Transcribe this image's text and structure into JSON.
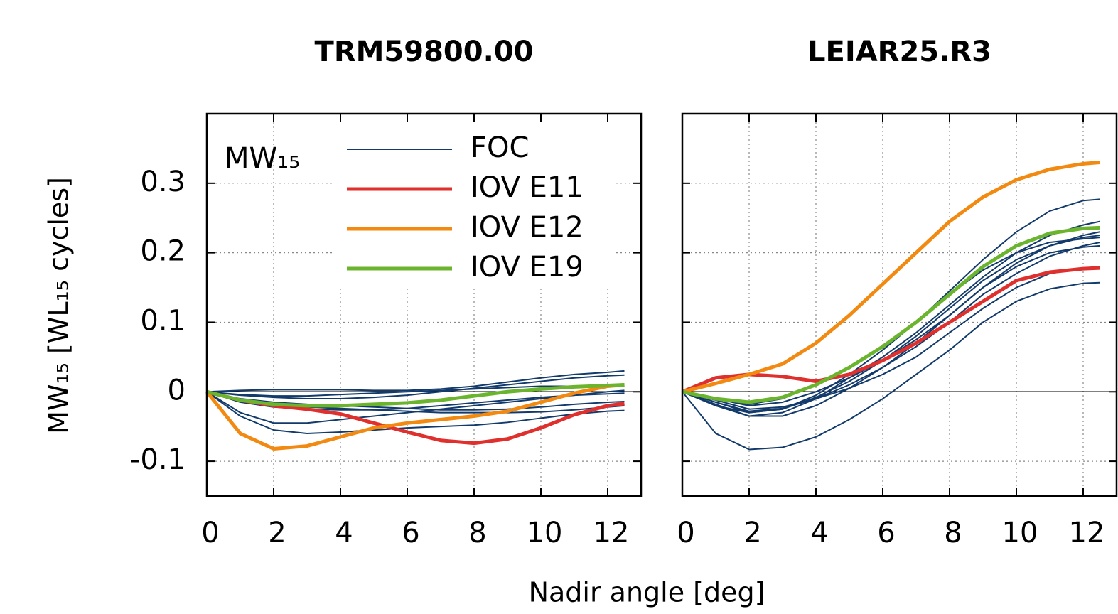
{
  "chart_data": [
    {
      "type": "line",
      "title": "TRM59800.00",
      "ylabel": "MW₁₅ [WL₁₅ cycles]",
      "legend_title": "MW₁₅",
      "legend": "upper left",
      "grid": true,
      "show_ytick_labels": true,
      "x": [
        0,
        1,
        2,
        3,
        4,
        5,
        6,
        7,
        8,
        9,
        10,
        11,
        12,
        12.5
      ],
      "xlim": [
        0,
        13
      ],
      "xticks": [
        0,
        2,
        4,
        6,
        8,
        10,
        12
      ],
      "ylim": [
        -0.15,
        0.4
      ],
      "yticks": [
        -0.1,
        0,
        0.1,
        0.2,
        0.3
      ],
      "series": [
        {
          "name": "FOC",
          "color": "#123a6b",
          "width": 2,
          "lines": [
            [
              0,
              0.002,
              0.003,
              0.003,
              0.003,
              0.002,
              0.002,
              0.004,
              0.008,
              0.014,
              0.02,
              0.025,
              0.028,
              0.03
            ],
            [
              0,
              -0.005,
              -0.008,
              -0.01,
              -0.01,
              -0.008,
              -0.005,
              0,
              0.005,
              0.01,
              0.015,
              0.02,
              0.023,
              0.024
            ],
            [
              0,
              -0.03,
              -0.045,
              -0.045,
              -0.04,
              -0.035,
              -0.03,
              -0.025,
              -0.02,
              -0.015,
              -0.01,
              -0.005,
              0,
              0.002
            ],
            [
              0,
              -0.035,
              -0.055,
              -0.06,
              -0.058,
              -0.055,
              -0.052,
              -0.05,
              -0.048,
              -0.044,
              -0.038,
              -0.032,
              -0.028,
              -0.027
            ],
            [
              0,
              -0.015,
              -0.022,
              -0.025,
              -0.026,
              -0.026,
              -0.024,
              -0.02,
              -0.016,
              -0.012,
              -0.008,
              -0.005,
              -0.003,
              -0.002
            ],
            [
              0,
              -0.01,
              -0.015,
              -0.018,
              -0.02,
              -0.022,
              -0.024,
              -0.026,
              -0.026,
              -0.025,
              -0.022,
              -0.018,
              -0.015,
              -0.014
            ],
            [
              0,
              -0.012,
              -0.018,
              -0.022,
              -0.024,
              -0.026,
              -0.028,
              -0.03,
              -0.03,
              -0.03,
              -0.029,
              -0.026,
              -0.022,
              -0.02
            ],
            [
              0,
              -0.004,
              -0.006,
              -0.006,
              -0.004,
              -0.002,
              0,
              0.002,
              0.004,
              0.006,
              0.008,
              0.008,
              0.008,
              0.008
            ]
          ]
        },
        {
          "name": "IOV E11",
          "color": "#e0302e",
          "width": 5,
          "lines": [
            [
              0,
              -0.012,
              -0.02,
              -0.025,
              -0.032,
              -0.045,
              -0.058,
              -0.07,
              -0.074,
              -0.068,
              -0.052,
              -0.033,
              -0.02,
              -0.017
            ]
          ]
        },
        {
          "name": "IOV E12",
          "color": "#f28a12",
          "width": 5,
          "lines": [
            [
              0,
              -0.06,
              -0.082,
              -0.078,
              -0.065,
              -0.052,
              -0.045,
              -0.04,
              -0.035,
              -0.028,
              -0.015,
              -0.002,
              0.008,
              0.01
            ]
          ]
        },
        {
          "name": "IOV E19",
          "color": "#6ab42e",
          "width": 5,
          "lines": [
            [
              0,
              -0.012,
              -0.018,
              -0.02,
              -0.02,
              -0.018,
              -0.016,
              -0.012,
              -0.006,
              0,
              0.004,
              0.007,
              0.009,
              0.01
            ]
          ]
        }
      ]
    },
    {
      "type": "line",
      "title": "LEIAR25.R3",
      "grid": true,
      "show_ytick_labels": false,
      "x": [
        0,
        1,
        2,
        3,
        4,
        5,
        6,
        7,
        8,
        9,
        10,
        11,
        12,
        12.5
      ],
      "xlim": [
        0,
        13
      ],
      "xticks": [
        0,
        2,
        4,
        6,
        8,
        10,
        12
      ],
      "ylim": [
        -0.15,
        0.4
      ],
      "yticks": [
        -0.1,
        0,
        0.1,
        0.2,
        0.3
      ],
      "series": [
        {
          "name": "FOC",
          "color": "#123a6b",
          "width": 2,
          "lines": [
            [
              0,
              -0.06,
              -0.083,
              -0.08,
              -0.065,
              -0.04,
              -0.01,
              0.025,
              0.06,
              0.1,
              0.13,
              0.148,
              0.156,
              0.157
            ],
            [
              0,
              -0.02,
              -0.03,
              -0.025,
              -0.005,
              0.025,
              0.06,
              0.1,
              0.145,
              0.19,
              0.23,
              0.26,
              0.275,
              0.277
            ],
            [
              0,
              -0.02,
              -0.035,
              -0.03,
              -0.01,
              0.02,
              0.05,
              0.085,
              0.125,
              0.165,
              0.2,
              0.225,
              0.24,
              0.245
            ],
            [
              0,
              -0.015,
              -0.03,
              -0.025,
              -0.008,
              0.015,
              0.045,
              0.08,
              0.12,
              0.16,
              0.19,
              0.21,
              0.225,
              0.23
            ],
            [
              0,
              -0.015,
              -0.028,
              -0.024,
              -0.01,
              0.01,
              0.035,
              0.065,
              0.1,
              0.14,
              0.17,
              0.195,
              0.21,
              0.215
            ],
            [
              0,
              -0.01,
              -0.02,
              -0.015,
              0,
              0.02,
              0.045,
              0.075,
              0.11,
              0.15,
              0.18,
              0.2,
              0.208,
              0.21
            ],
            [
              0,
              -0.012,
              -0.025,
              -0.022,
              -0.01,
              0.005,
              0.025,
              0.05,
              0.085,
              0.12,
              0.15,
              0.17,
              0.178,
              0.18
            ],
            [
              0,
              -0.018,
              -0.035,
              -0.035,
              -0.02,
              0.005,
              0.035,
              0.07,
              0.11,
              0.15,
              0.185,
              0.21,
              0.222,
              0.225
            ],
            [
              0,
              -0.01,
              -0.018,
              -0.01,
              0.01,
              0.035,
              0.065,
              0.1,
              0.14,
              0.175,
              0.2,
              0.215,
              0.22,
              0.222
            ]
          ]
        },
        {
          "name": "IOV E11",
          "color": "#e0302e",
          "width": 5,
          "lines": [
            [
              0,
              0.02,
              0.025,
              0.022,
              0.015,
              0.025,
              0.045,
              0.07,
              0.1,
              0.13,
              0.16,
              0.172,
              0.177,
              0.178
            ]
          ]
        },
        {
          "name": "IOV E12",
          "color": "#f28a12",
          "width": 5,
          "lines": [
            [
              0,
              0.012,
              0.025,
              0.04,
              0.07,
              0.11,
              0.155,
              0.2,
              0.245,
              0.28,
              0.305,
              0.32,
              0.328,
              0.33
            ]
          ]
        },
        {
          "name": "IOV E19",
          "color": "#6ab42e",
          "width": 5,
          "lines": [
            [
              0,
              -0.01,
              -0.015,
              -0.008,
              0.01,
              0.035,
              0.065,
              0.1,
              0.14,
              0.18,
              0.21,
              0.228,
              0.235,
              0.236
            ]
          ]
        }
      ]
    }
  ],
  "xlabel": "Nadir angle [deg]"
}
